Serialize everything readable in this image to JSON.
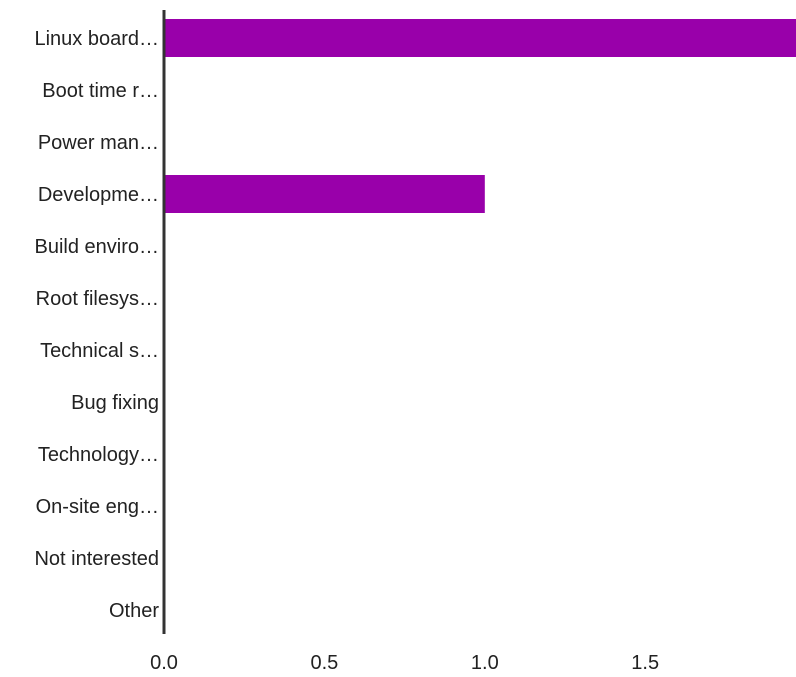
{
  "chart_data": {
    "type": "bar",
    "orientation": "horizontal",
    "categories": [
      "Linux board…",
      "Boot time r…",
      "Power man…",
      "Developme…",
      "Build enviro…",
      "Root filesys…",
      "Technical s…",
      "Bug fixing",
      "Technology…",
      "On-site eng…",
      "Not interested",
      "Other"
    ],
    "values": [
      2,
      0,
      0,
      1,
      0,
      0,
      0,
      0,
      0,
      0,
      0,
      0
    ],
    "xlim": [
      0,
      1.97
    ],
    "xticks": [
      "0.0",
      "0.5",
      "1.0",
      "1.5"
    ],
    "xtick_values": [
      0,
      0.5,
      1.0,
      1.5
    ],
    "grid": false,
    "legend": "none",
    "bar_color": "#9900aa",
    "axis_color": "#333333"
  }
}
